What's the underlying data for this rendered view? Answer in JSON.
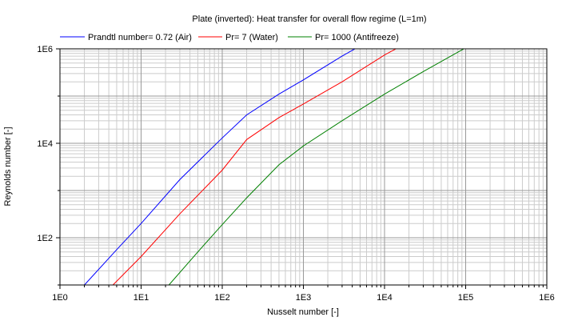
{
  "chart_data": {
    "type": "line",
    "title": "Plate (inverted): Heat transfer for overall flow regime (L=1m)",
    "xlabel": "Nusselt number [-]",
    "ylabel": "Reynolds number [-]",
    "x_scale": "log",
    "y_scale": "log",
    "xlim": [
      1,
      1000000
    ],
    "ylim": [
      10,
      1000000
    ],
    "grid": true,
    "legend_position": "top",
    "x_ticks": [
      "1E0",
      "1E1",
      "1E2",
      "1E3",
      "1E4",
      "1E5",
      "1E6"
    ],
    "y_ticks": [
      "1E2",
      "1E4",
      "1E6"
    ],
    "series": [
      {
        "name": "Prandtl number= 0.72 (Air)",
        "color": "#0000ff",
        "points": [
          [
            2,
            10
          ],
          [
            5,
            56
          ],
          [
            10,
            200
          ],
          [
            30,
            1700
          ],
          [
            100,
            13000
          ],
          [
            200,
            40000
          ],
          [
            500,
            110000
          ],
          [
            1000,
            220000
          ],
          [
            3000,
            700000
          ],
          [
            5000,
            1150000
          ],
          [
            12000,
            3000000
          ]
        ]
      },
      {
        "name": "Pr= 7 (Water)",
        "color": "#ff0000",
        "points": [
          [
            4.5,
            10
          ],
          [
            10,
            40
          ],
          [
            30,
            320
          ],
          [
            100,
            2700
          ],
          [
            200,
            12000
          ],
          [
            500,
            35000
          ],
          [
            1000,
            68000
          ],
          [
            3000,
            200000
          ],
          [
            10000,
            740000
          ],
          [
            45000,
            3000000
          ]
        ]
      },
      {
        "name": "Pr= 1000 (Antifreeze)",
        "color": "#008000",
        "points": [
          [
            22,
            10
          ],
          [
            50,
            50
          ],
          [
            100,
            190
          ],
          [
            200,
            700
          ],
          [
            500,
            3500
          ],
          [
            1000,
            8800
          ],
          [
            3000,
            30000
          ],
          [
            10000,
            110000
          ],
          [
            30000,
            330000
          ],
          [
            100000,
            1050000
          ],
          [
            300000,
            3000000
          ]
        ]
      }
    ]
  }
}
